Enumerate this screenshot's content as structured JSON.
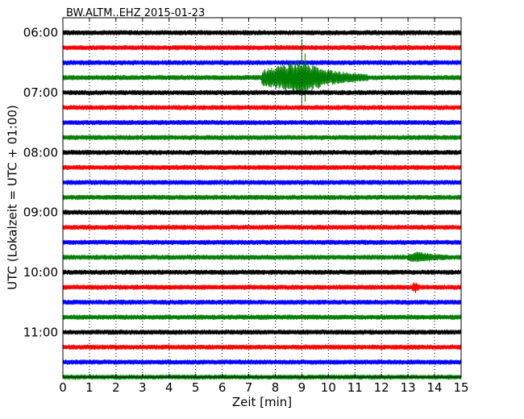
{
  "chart_data": {
    "type": "line",
    "title": "BW.ALTM..EHZ 2015-01-23",
    "xlabel": "Zeit  [min]",
    "ylabel": "UTC (Lokalzeit = UTC + 01:00)",
    "xlim": [
      0,
      15
    ],
    "x_ticks": [
      "0",
      "1",
      "2",
      "3",
      "4",
      "5",
      "6",
      "7",
      "8",
      "9",
      "10",
      "11",
      "12",
      "13",
      "14",
      "15"
    ],
    "y_tick_labels": [
      "06:00",
      "07:00",
      "08:00",
      "09:00",
      "10:00",
      "11:00"
    ],
    "row_start_times": [
      "06:00",
      "06:15",
      "06:30",
      "06:45",
      "07:00",
      "07:15",
      "07:30",
      "07:45",
      "08:00",
      "08:15",
      "08:30",
      "08:45",
      "09:00",
      "09:15",
      "09:30",
      "09:45",
      "10:00",
      "10:15",
      "10:30",
      "10:45",
      "11:00",
      "11:15",
      "11:30",
      "11:45"
    ],
    "row_colors": [
      "#000000",
      "#ff0000",
      "#0000ff",
      "#008000"
    ],
    "events": [
      {
        "row_time": "06:45",
        "x_start": 7.5,
        "x_end": 11.5,
        "peak_x": 9.0,
        "amplitude": "large"
      },
      {
        "row_time": "09:45",
        "x_start": 13.0,
        "x_end": 14.5,
        "peak_x": 13.4,
        "amplitude": "small"
      },
      {
        "row_time": "10:15",
        "x_start": 13.15,
        "x_end": 13.45,
        "peak_x": 13.3,
        "amplitude": "small"
      }
    ],
    "grid": {
      "x": "dotted-vertical",
      "y": false
    },
    "legend": "none"
  }
}
